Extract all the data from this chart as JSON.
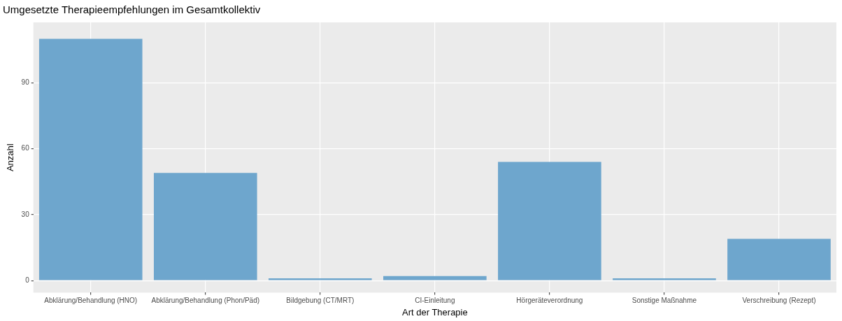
{
  "chart_data": {
    "type": "bar",
    "title": "Umgesetzte Therapieempfehlungen im Gesamtkollektiv",
    "xlabel": "Art der Therapie",
    "ylabel": "Anzahl",
    "categories": [
      "Abklärung/Behandlung (HNO)",
      "Abklärung/Behandlung (Phon/Päd)",
      "Bildgebung (CT/MRT)",
      "CI-Einleitung",
      "Hörgeräteverordnung",
      "Sonstige Maßnahme",
      "Verschreibung (Rezept)"
    ],
    "values": [
      110,
      49,
      1,
      2,
      54,
      1,
      19
    ],
    "color": "#6ea6cd",
    "ylim": [
      -5.5,
      117.5
    ],
    "yticks": [
      0,
      30,
      60,
      90
    ],
    "grid": true
  }
}
